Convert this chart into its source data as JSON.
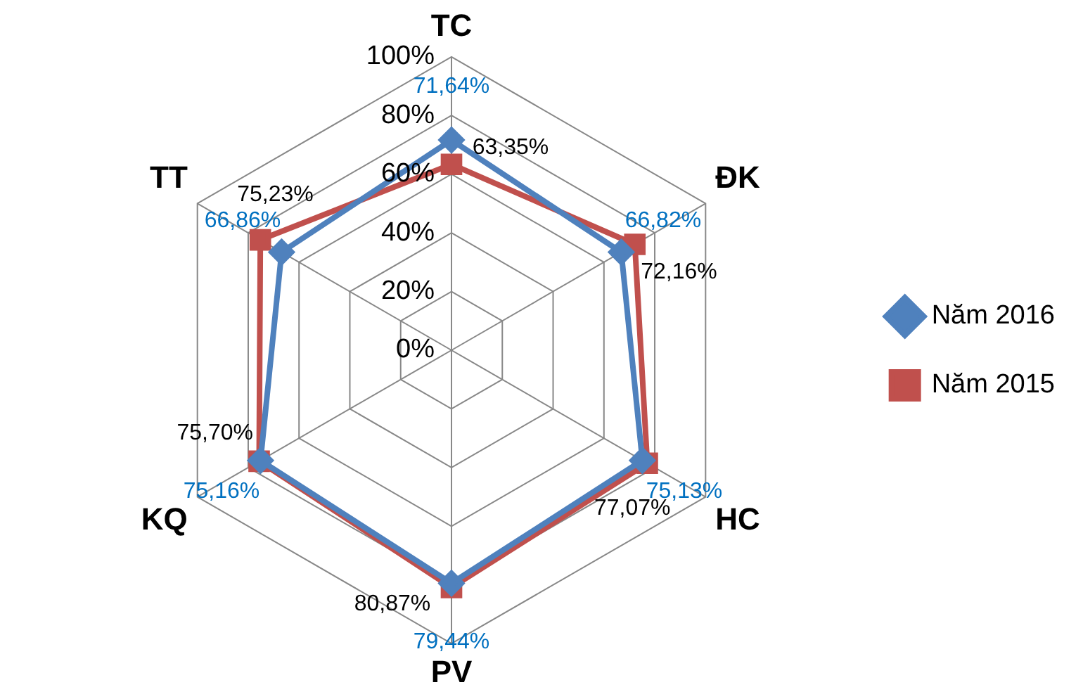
{
  "chart_data": {
    "type": "radar",
    "categories": [
      "TC",
      "ĐK",
      "HC",
      "PV",
      "KQ",
      "TT"
    ],
    "series": [
      {
        "name": "Năm 2016",
        "color": "#4f81bd",
        "marker": "diamond",
        "values": [
          71.64,
          66.82,
          75.13,
          79.44,
          75.16,
          66.86
        ],
        "value_labels": [
          "71,64%",
          "66,82%",
          "75,13%",
          "79,44%",
          "75,16%",
          "66,86%"
        ]
      },
      {
        "name": "Năm 2015",
        "color": "#c0504d",
        "marker": "square",
        "values": [
          63.35,
          72.16,
          77.07,
          80.87,
          75.7,
          75.23
        ],
        "value_labels": [
          "63,35%",
          "72,16%",
          "77,07%",
          "80,87%",
          "75,70%",
          "75,23%"
        ]
      }
    ],
    "ylim": [
      0,
      100
    ],
    "yticks": [
      {
        "value": 0,
        "label": "0%"
      },
      {
        "value": 20,
        "label": "20%"
      },
      {
        "value": 40,
        "label": "40%"
      },
      {
        "value": 60,
        "label": "60%"
      },
      {
        "value": 80,
        "label": "80%"
      },
      {
        "value": 100,
        "label": "100%"
      }
    ],
    "grid": true,
    "legend": "right"
  }
}
